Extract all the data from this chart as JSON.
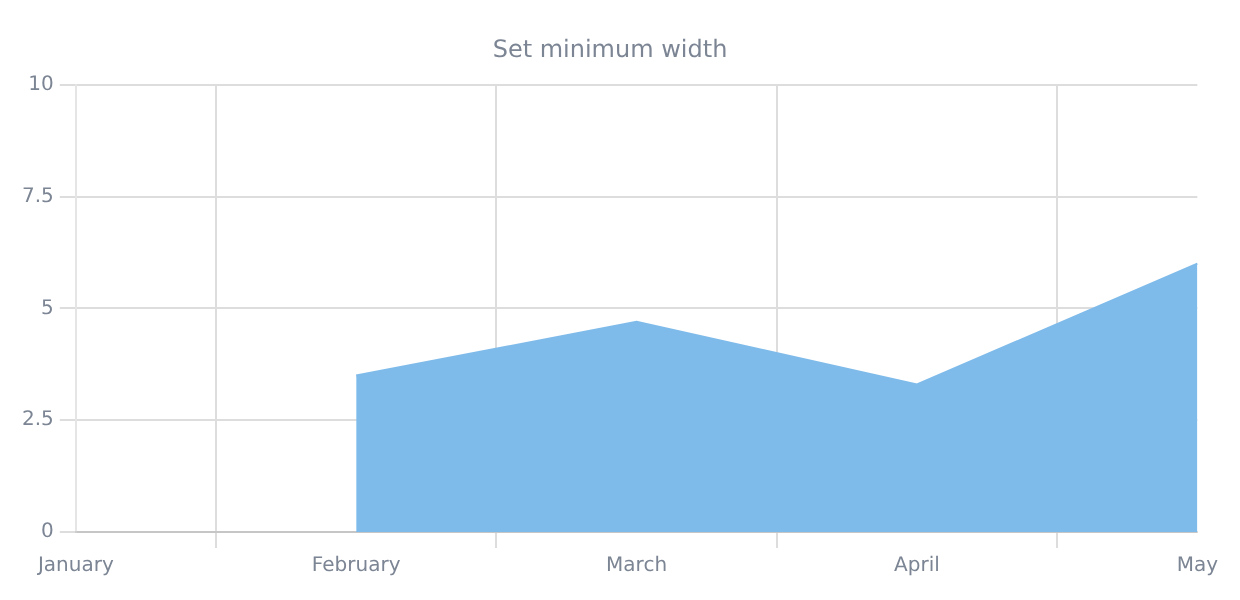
{
  "chart_data": {
    "type": "area",
    "title": "Set minimum width",
    "categories": [
      "January",
      "February",
      "March",
      "April",
      "May"
    ],
    "series": [
      {
        "color": "#7fbbea",
        "values": [
          null,
          3.5,
          4.7,
          3.3,
          6
        ]
      }
    ],
    "ylim": [
      0,
      10
    ],
    "yticks": [
      0,
      2.5,
      5,
      7.5,
      10
    ],
    "grid": true,
    "legend": false
  }
}
